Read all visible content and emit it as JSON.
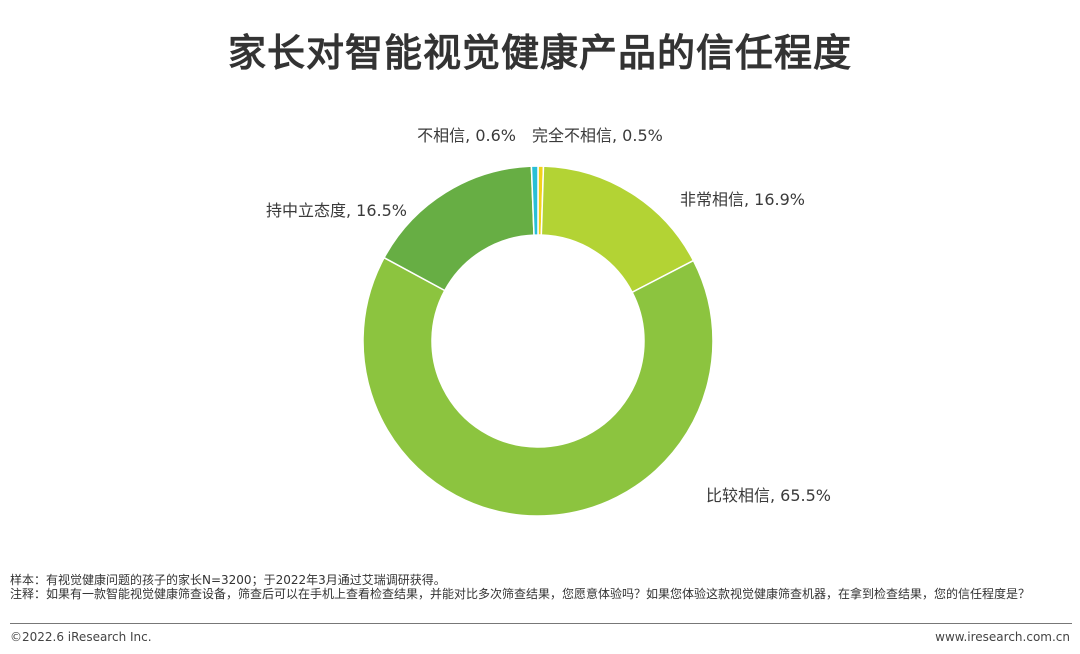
{
  "chart_data": {
    "type": "pie",
    "style": "donut",
    "title": "家长对智能视觉健康产品的信任程度",
    "unit": "%",
    "slices": [
      {
        "label": "完全不相信",
        "display": "完全不相信, 0.5%",
        "value": 0.5,
        "color": "#f2d21b"
      },
      {
        "label": "非常相信",
        "display": "非常相信, 16.9%",
        "value": 16.9,
        "color": "#b3d334"
      },
      {
        "label": "比较相信",
        "display": "比较相信, 65.5%",
        "value": 65.5,
        "color": "#8cc43f"
      },
      {
        "label": "持中立态度",
        "display": "持中立态度, 16.5%",
        "value": 16.5,
        "color": "#67ae44"
      },
      {
        "label": "不相信",
        "display": "不相信, 0.6%",
        "value": 0.6,
        "color": "#29bfd6"
      }
    ]
  },
  "notes": {
    "sample": "样本：有视觉健康问题的孩子的家长N=3200；于2022年3月通过艾瑞调研获得。",
    "remark": "注释：如果有一款智能视觉健康筛查设备，筛查后可以在手机上查看检查结果，并能对比多次筛查结果，您愿意体验吗？如果您体验这款视觉健康筛查机器，在拿到检查结果，您的信任程度是？"
  },
  "footer": {
    "copyright": "©2022.6 iResearch Inc.",
    "website": "www.iresearch.com.cn"
  }
}
